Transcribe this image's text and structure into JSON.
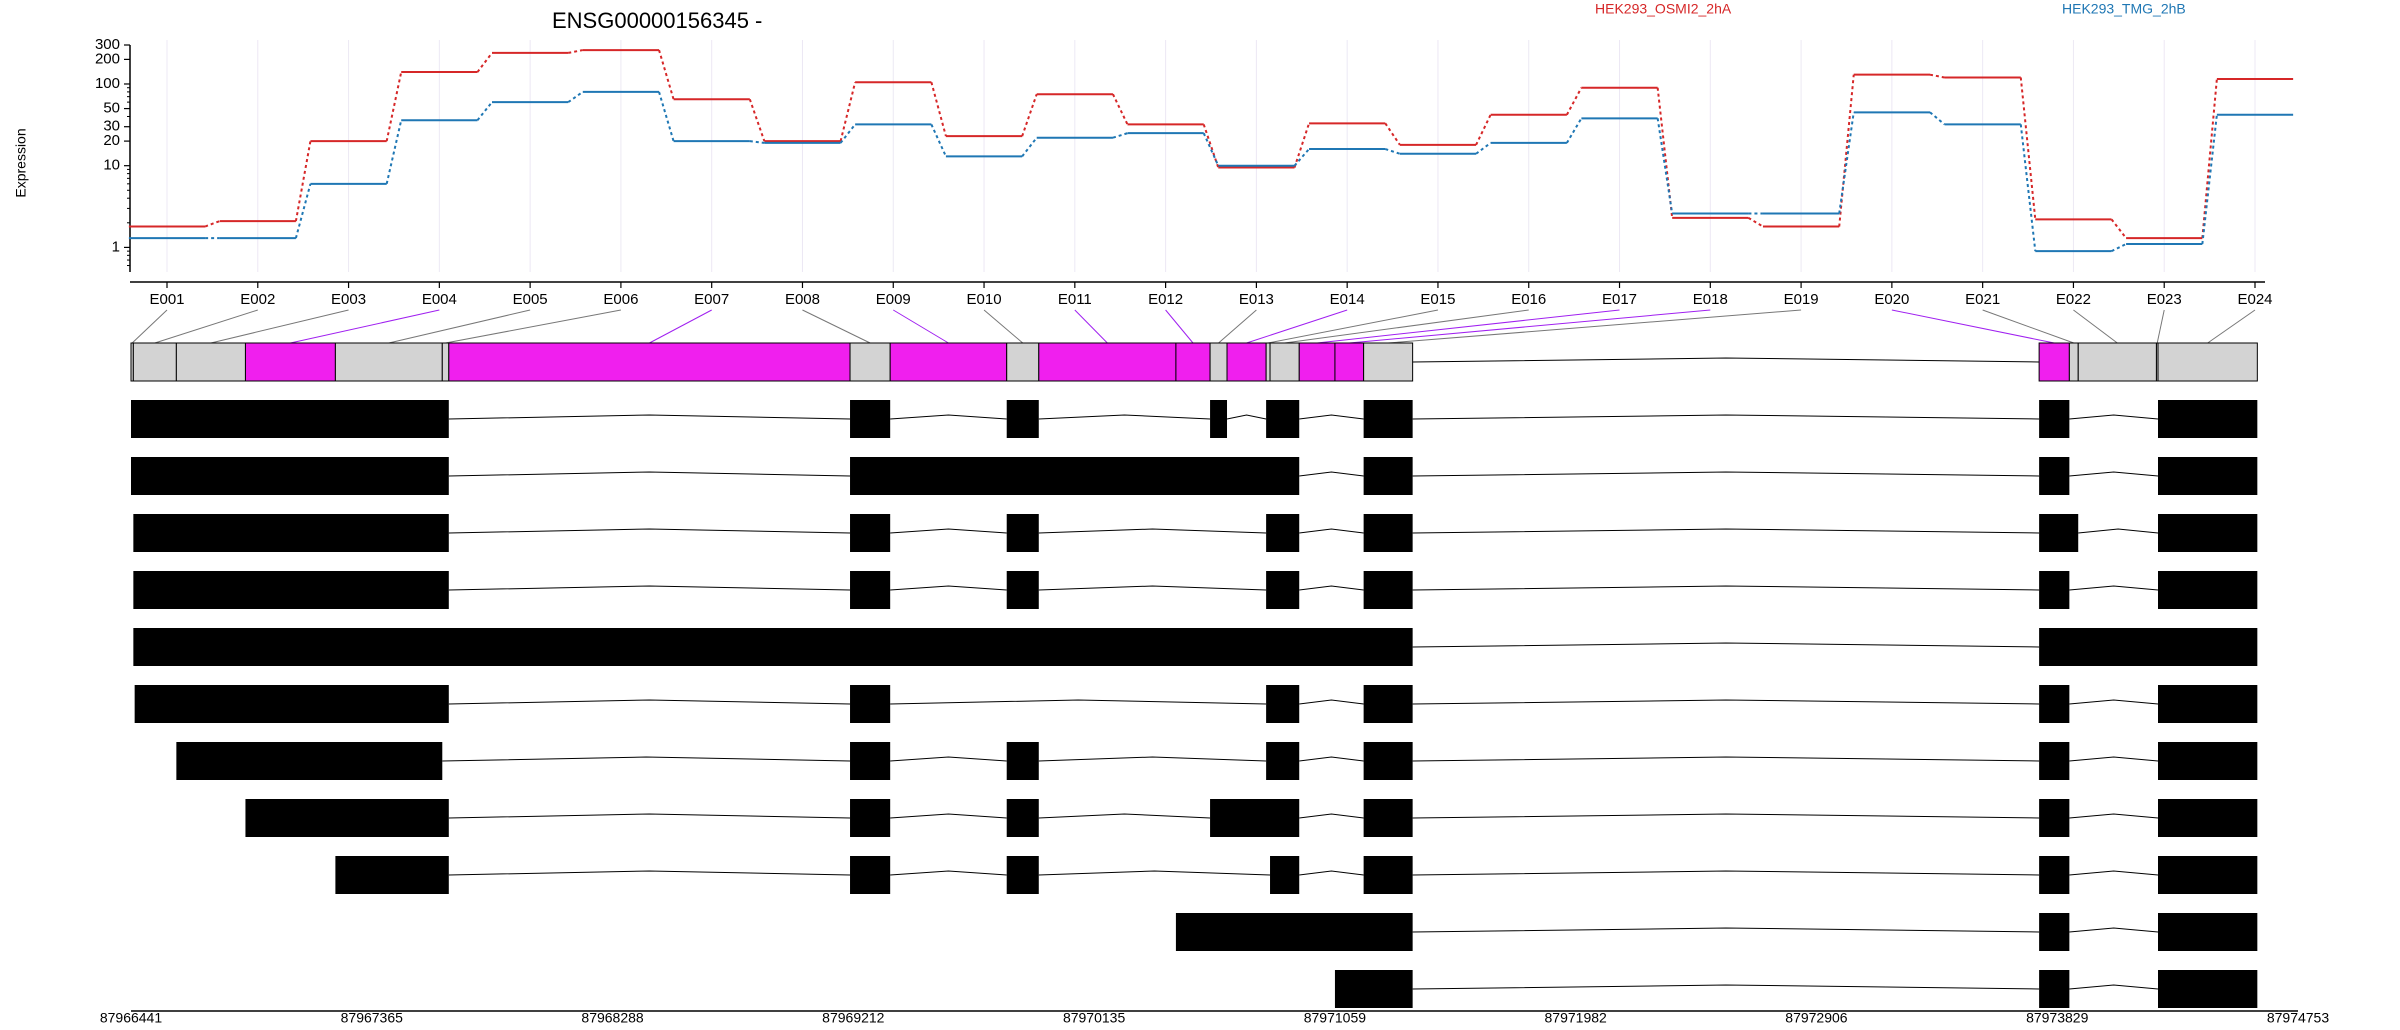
{
  "chart_data": {
    "type": "line",
    "title": "ENSG00000156345 -",
    "ylabel": "Expression",
    "yscale": "log",
    "ylim": [
      0.5,
      300
    ],
    "yticks": [
      1,
      10,
      20,
      30,
      50,
      100,
      200,
      300
    ],
    "xlabel": "",
    "legend_placement": "top",
    "categories": [
      "E001",
      "E002",
      "E003",
      "E004",
      "E005",
      "E006",
      "E007",
      "E008",
      "E009",
      "E010",
      "E011",
      "E012",
      "E013",
      "E014",
      "E015",
      "E016",
      "E017",
      "E018",
      "E019",
      "E020",
      "E021",
      "E022",
      "E023",
      "E024"
    ],
    "series": [
      {
        "name": "HEK293_OSMI2_2hA",
        "color": "#d62728",
        "values": [
          1.8,
          2.1,
          20,
          140,
          240,
          260,
          65,
          20,
          105,
          23,
          75,
          32,
          9.5,
          33,
          18,
          42,
          90,
          2.3,
          1.8,
          130,
          120,
          2.2,
          1.3,
          115
        ]
      },
      {
        "name": "HEK293_TMG_2hB",
        "color": "#1f77b4",
        "values": [
          1.3,
          1.3,
          6,
          36,
          60,
          80,
          20,
          19,
          32,
          13,
          22,
          25,
          10,
          16,
          14,
          19,
          38,
          2.6,
          2.6,
          45,
          32,
          0.9,
          1.1,
          42
        ]
      }
    ],
    "genomic_coordinates": {
      "range": [
        87966441,
        87974753
      ],
      "tick_labels": [
        "87966441",
        "87967365",
        "87968288",
        "87969212",
        "87970135",
        "87971059",
        "87971982",
        "87972906",
        "87973829",
        "87974753"
      ]
    },
    "exon_bins": [
      {
        "id": "E001",
        "start": 87966441,
        "end": 87966450,
        "color": "#d3d3d3"
      },
      {
        "id": "E002",
        "start": 87966450,
        "end": 87966615,
        "color": "#d3d3d3"
      },
      {
        "id": "E003",
        "start": 87966615,
        "end": 87966880,
        "color": "#d3d3d3"
      },
      {
        "id": "E004",
        "start": 87966880,
        "end": 87967225,
        "color": "#f01fee"
      },
      {
        "id": "E005",
        "start": 87967225,
        "end": 87967635,
        "color": "#d3d3d3"
      },
      {
        "id": "E006",
        "start": 87967635,
        "end": 87967660,
        "color": "#d3d3d3"
      },
      {
        "id": "E007",
        "start": 87967660,
        "end": 87969199,
        "color": "#f01fee"
      },
      {
        "id": "E008",
        "start": 87969199,
        "end": 87969353,
        "color": "#d3d3d3"
      },
      {
        "id": "E009",
        "start": 87969353,
        "end": 87969800,
        "color": "#f01fee"
      },
      {
        "id": "E010",
        "start": 87969800,
        "end": 87969923,
        "color": "#d3d3d3"
      },
      {
        "id": "E011",
        "start": 87969923,
        "end": 87970449,
        "color": "#f01fee"
      },
      {
        "id": "E012",
        "start": 87970449,
        "end": 87970580,
        "color": "#f01fee"
      },
      {
        "id": "E013",
        "start": 87970580,
        "end": 87970645,
        "color": "#d3d3d3"
      },
      {
        "id": "E014",
        "start": 87970645,
        "end": 87970795,
        "color": "#f01fee"
      },
      {
        "id": "E015",
        "start": 87970795,
        "end": 87970810,
        "color": "#d3d3d3"
      },
      {
        "id": "E016",
        "start": 87970810,
        "end": 87970922,
        "color": "#d3d3d3"
      },
      {
        "id": "E017",
        "start": 87970922,
        "end": 87971059,
        "color": "#f01fee"
      },
      {
        "id": "E018",
        "start": 87971059,
        "end": 87971169,
        "color": "#f01fee"
      },
      {
        "id": "E019",
        "start": 87971169,
        "end": 87971357,
        "color": "#d3d3d3"
      },
      {
        "id": "E020",
        "start": 87973760,
        "end": 87973876,
        "color": "#f01fee"
      },
      {
        "id": "E021",
        "start": 87973876,
        "end": 87973910,
        "color": "#d3d3d3"
      },
      {
        "id": "E022",
        "start": 87973910,
        "end": 87974210,
        "color": "#d3d3d3"
      },
      {
        "id": "E023",
        "start": 87974210,
        "end": 87974216,
        "color": "#d3d3d3"
      },
      {
        "id": "E024",
        "start": 87974216,
        "end": 87974597,
        "color": "#d3d3d3"
      }
    ],
    "transcripts": [
      [
        [
          87966441,
          87967660
        ],
        [
          87969199,
          87969353
        ],
        [
          87969800,
          87969923
        ],
        [
          87970580,
          87970645
        ],
        [
          87970795,
          87970922
        ],
        [
          87971169,
          87971357
        ],
        [
          87973760,
          87973876
        ],
        [
          87974216,
          87974597
        ]
      ],
      [
        [
          87966441,
          87967660
        ],
        [
          87969199,
          87970922
        ],
        [
          87971169,
          87971357
        ],
        [
          87973760,
          87973876
        ],
        [
          87974216,
          87974597
        ]
      ],
      [
        [
          87966450,
          87967660
        ],
        [
          87969199,
          87969353
        ],
        [
          87969800,
          87969923
        ],
        [
          87970795,
          87970922
        ],
        [
          87971169,
          87971357
        ],
        [
          87973760,
          87973910
        ],
        [
          87974216,
          87974597
        ]
      ],
      [
        [
          87966450,
          87967660
        ],
        [
          87969199,
          87969353
        ],
        [
          87969800,
          87969923
        ],
        [
          87970795,
          87970922
        ],
        [
          87971169,
          87971357
        ],
        [
          87973760,
          87973876
        ],
        [
          87974216,
          87974597
        ]
      ],
      [
        [
          87966450,
          87971357
        ],
        [
          87973760,
          87974597
        ]
      ],
      [
        [
          87966455,
          87967660
        ],
        [
          87969199,
          87969353
        ],
        [
          87970795,
          87970922
        ],
        [
          87971169,
          87971357
        ],
        [
          87973760,
          87973876
        ],
        [
          87974216,
          87974597
        ]
      ],
      [
        [
          87966615,
          87967635
        ],
        [
          87969199,
          87969353
        ],
        [
          87969800,
          87969923
        ],
        [
          87970795,
          87970922
        ],
        [
          87971169,
          87971357
        ],
        [
          87973760,
          87973876
        ],
        [
          87974216,
          87974597
        ]
      ],
      [
        [
          87966880,
          87967660
        ],
        [
          87969199,
          87969353
        ],
        [
          87969800,
          87969923
        ],
        [
          87970580,
          87970922
        ],
        [
          87971169,
          87971357
        ],
        [
          87973760,
          87973876
        ],
        [
          87974216,
          87974597
        ]
      ],
      [
        [
          87967225,
          87967660
        ],
        [
          87969199,
          87969353
        ],
        [
          87969800,
          87969923
        ],
        [
          87970810,
          87970922
        ],
        [
          87971169,
          87971357
        ],
        [
          87973760,
          87973876
        ],
        [
          87974216,
          87974597
        ]
      ],
      [
        [
          87970449,
          87971357
        ],
        [
          87973760,
          87973876
        ],
        [
          87974216,
          87974597
        ]
      ],
      [
        [
          87971059,
          87971357
        ],
        [
          87973760,
          87973876
        ],
        [
          87974216,
          87974597
        ]
      ]
    ]
  }
}
